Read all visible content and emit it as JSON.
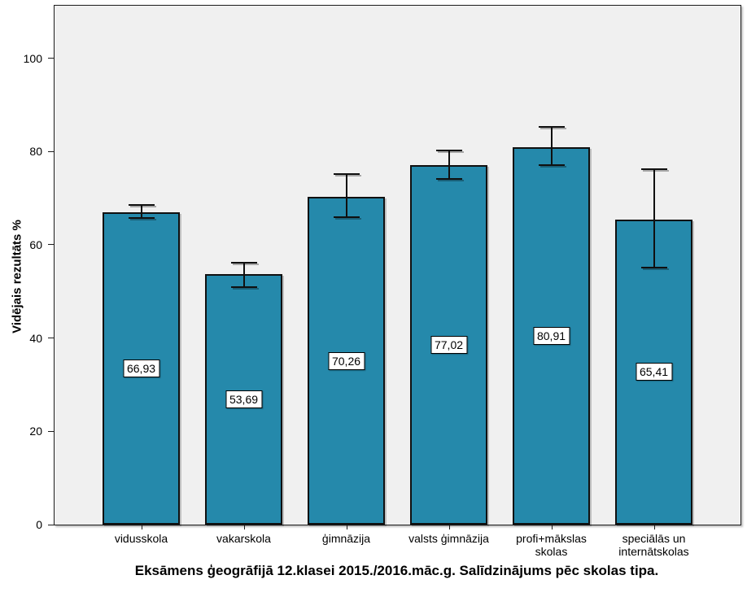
{
  "figure": {
    "title": "Eksāmens ģeogrāfijā 12.klasei 2015./2016.māc.g. Salīdzinājums pēc skolas tipa.",
    "ylabel": "Vidējais rezultāts %"
  },
  "chart_data": {
    "type": "bar",
    "title": "Eksāmens ģeogrāfijā 12.klasei 2015./2016.māc.g. Salīdzinājums pēc skolas tipa.",
    "xlabel": "",
    "ylabel": "Vidējais rezultāts %",
    "categories": [
      "vidusskola",
      "vakarskola",
      "ģimnāzija",
      "valsts ģimnāzija",
      "profi+mākslas skolas",
      "speciālās un internātskolas"
    ],
    "category_lines": [
      [
        "vidusskola"
      ],
      [
        "vakarskola"
      ],
      [
        "ģimnāzija"
      ],
      [
        "valsts ģimnāzija"
      ],
      [
        "profi+mākslas",
        "skolas"
      ],
      [
        "speciālās un",
        "internātskolas"
      ]
    ],
    "values": [
      66.93,
      53.69,
      70.26,
      77.02,
      80.91,
      65.41
    ],
    "value_labels": [
      "66,93",
      "53,69",
      "70,26",
      "77,02",
      "80,91",
      "65,41"
    ],
    "error_bars": {
      "low": [
        65.6,
        50.7,
        65.7,
        74.0,
        76.9,
        54.9
      ],
      "high": [
        68.7,
        56.4,
        75.3,
        80.4,
        85.4,
        76.4
      ]
    },
    "yticks": [
      0,
      20,
      40,
      60,
      80,
      100
    ],
    "ylim": [
      0,
      111.3
    ],
    "grid": false,
    "legend": "none",
    "bar_color": "#2589ab",
    "bar_border_color": "#101010",
    "plot_background": "#f0f0f0"
  }
}
